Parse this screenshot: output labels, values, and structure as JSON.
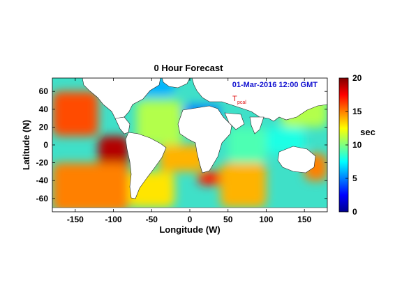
{
  "title": "0 Hour Forecast",
  "timestamp": "01-Mar-2016 12:00 GMT",
  "variable": {
    "symbol": "T",
    "subscript": "pcal"
  },
  "axes": {
    "xlabel": "Longitude (W)",
    "ylabel": "Latitude (N)",
    "xlim": [
      -180,
      180
    ],
    "ylim": [
      -75,
      75
    ],
    "xticks": [
      -150,
      -100,
      -50,
      0,
      50,
      100,
      150
    ],
    "yticks": [
      60,
      40,
      20,
      0,
      -20,
      -40,
      -60
    ]
  },
  "colorbar": {
    "label": "sec",
    "range": [
      0,
      20
    ],
    "ticks": [
      20,
      15,
      10,
      5,
      0
    ],
    "colormap": "jet"
  },
  "colors": {
    "land": "#ffffff",
    "ocean_base": "#3fe0c8",
    "timestamp": "#1010d0",
    "variable": "#e01010"
  },
  "chart_data": {
    "type": "heatmap",
    "title": "0 Hour Forecast",
    "xlabel": "Longitude (W)",
    "ylabel": "Latitude (N)",
    "xlim": [
      -180,
      180
    ],
    "ylim": [
      -75,
      75
    ],
    "zlabel": "sec",
    "zlim": [
      0,
      20
    ],
    "colormap": "jet",
    "regions": [
      {
        "lon": [
          -180,
          -120
        ],
        "lat": [
          10,
          60
        ],
        "value": 16
      },
      {
        "lon": [
          -120,
          -80
        ],
        "lat": [
          -40,
          10
        ],
        "value": 19
      },
      {
        "lon": [
          -180,
          -80
        ],
        "lat": [
          -75,
          -20
        ],
        "value": 15
      },
      {
        "lon": [
          -80,
          -20
        ],
        "lat": [
          -70,
          -30
        ],
        "value": 13
      },
      {
        "lon": [
          -70,
          -10
        ],
        "lat": [
          0,
          50
        ],
        "value": 11
      },
      {
        "lon": [
          -40,
          20
        ],
        "lat": [
          -30,
          0
        ],
        "value": 14
      },
      {
        "lon": [
          10,
          60
        ],
        "lat": [
          -45,
          -30
        ],
        "value": 17
      },
      {
        "lon": [
          40,
          100
        ],
        "lat": [
          -70,
          -20
        ],
        "value": 14
      },
      {
        "lon": [
          50,
          100
        ],
        "lat": [
          -20,
          20
        ],
        "value": 9
      },
      {
        "lon": [
          100,
          150
        ],
        "lat": [
          -10,
          20
        ],
        "value": 8
      },
      {
        "lon": [
          120,
          180
        ],
        "lat": [
          20,
          60
        ],
        "value": 11
      },
      {
        "lon": [
          150,
          180
        ],
        "lat": [
          -40,
          -10
        ],
        "value": 15
      },
      {
        "lon": [
          -80,
          -20
        ],
        "lat": [
          55,
          75
        ],
        "value": 6
      },
      {
        "lon": [
          -10,
          40
        ],
        "lat": [
          30,
          45
        ],
        "value": 5
      }
    ]
  }
}
